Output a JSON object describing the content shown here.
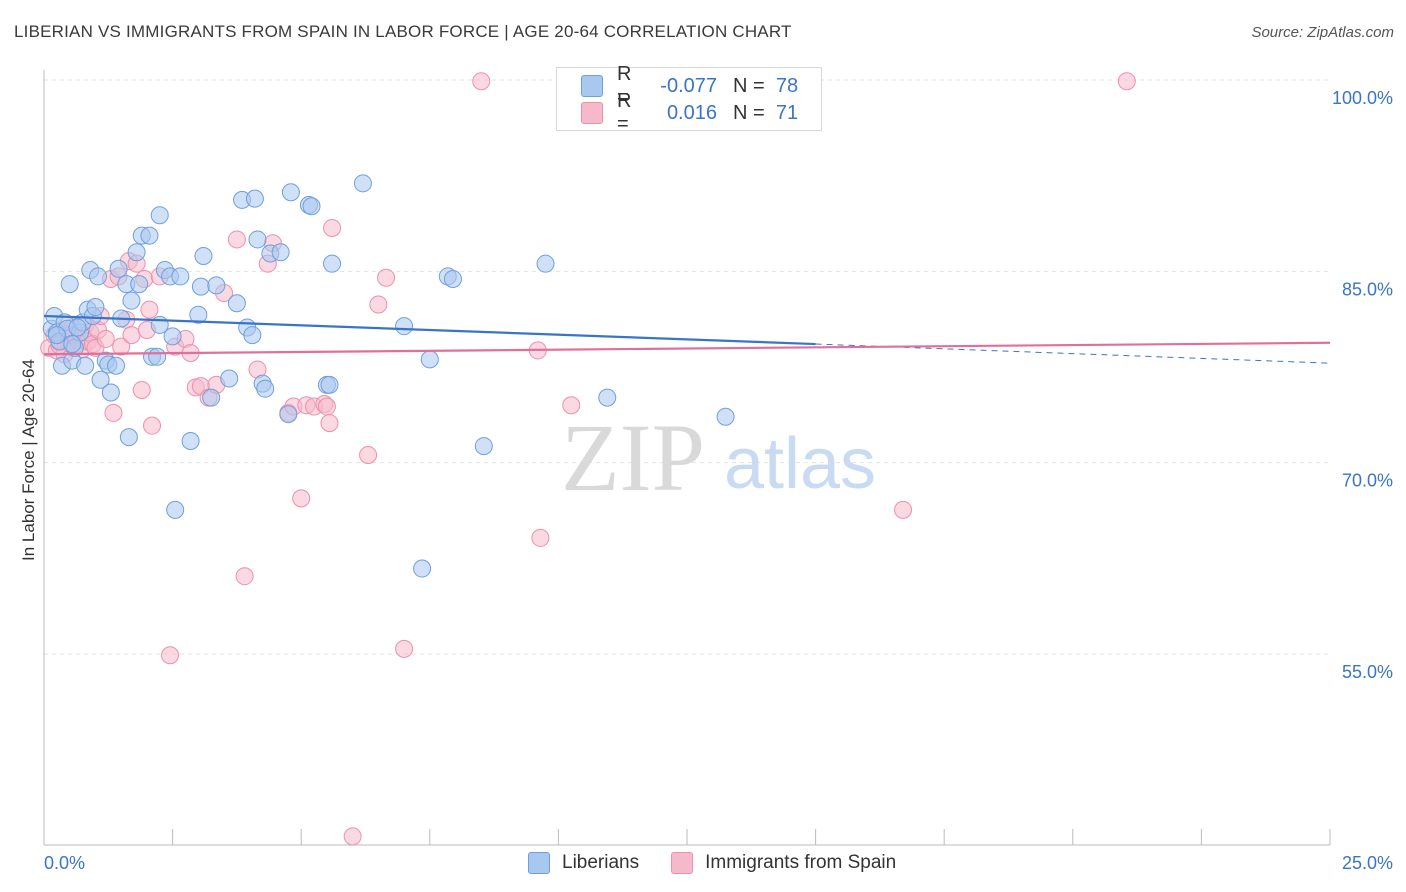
{
  "header": {
    "title": "LIBERIAN VS IMMIGRANTS FROM SPAIN IN LABOR FORCE | AGE 20-64 CORRELATION CHART",
    "source": "Source: ZipAtlas.com"
  },
  "watermark": {
    "zip": "ZIP",
    "atlas": "atlas"
  },
  "legend": {
    "rows": [
      {
        "r_label": "R =",
        "r_value": "-0.077",
        "n_label": "N =",
        "n_value": "78"
      },
      {
        "r_label": "R =",
        "r_value": "0.016",
        "n_label": "N =",
        "n_value": "71"
      }
    ]
  },
  "bottom_legend": {
    "series1": "Liberians",
    "series2": "Immigrants from Spain"
  },
  "colors": {
    "series1_fill": "#a9c8f0",
    "series1_stroke": "#6f9fdf",
    "series1_line": "#3a74c9",
    "series2_fill": "#f6b9cc",
    "series2_stroke": "#ee8fae",
    "series2_line": "#e0709a",
    "axis_text": "#3a74c9",
    "grid": "#e3e3e3"
  },
  "chart_data": {
    "type": "scatter",
    "title": "LIBERIAN VS IMMIGRANTS FROM SPAIN IN LABOR FORCE | AGE 20-64 CORRELATION CHART",
    "xlabel": "",
    "ylabel": "In Labor Force | Age 20-64",
    "xlim": [
      0,
      25
    ],
    "ylim": [
      40,
      101
    ],
    "x_tick_labels": [
      "0.0%",
      "25.0%"
    ],
    "y_ticks": [
      55,
      70,
      85,
      100
    ],
    "y_tick_labels": [
      "55.0%",
      "70.0%",
      "85.0%",
      "100.0%"
    ],
    "grid": true,
    "series": [
      {
        "name": "Liberians",
        "trend": {
          "x": [
            0,
            15
          ],
          "y": [
            81.5,
            79.3
          ],
          "dashed_to": [
            25,
            77.8
          ]
        },
        "points": [
          [
            0.15,
            80.5
          ],
          [
            0.2,
            81.5
          ],
          [
            0.25,
            80.2
          ],
          [
            0.3,
            79.5
          ],
          [
            0.35,
            77.6
          ],
          [
            0.4,
            81.0
          ],
          [
            0.45,
            80.5
          ],
          [
            0.5,
            84.0
          ],
          [
            0.55,
            78.0
          ],
          [
            0.6,
            79.0
          ],
          [
            0.7,
            80.2
          ],
          [
            0.75,
            81.0
          ],
          [
            0.8,
            77.6
          ],
          [
            0.85,
            82.0
          ],
          [
            0.9,
            85.1
          ],
          [
            0.95,
            81.5
          ],
          [
            1.0,
            82.2
          ],
          [
            1.05,
            84.6
          ],
          [
            1.1,
            76.5
          ],
          [
            1.2,
            78.0
          ],
          [
            1.25,
            77.7
          ],
          [
            1.3,
            75.5
          ],
          [
            1.4,
            77.6
          ],
          [
            1.45,
            85.2
          ],
          [
            1.5,
            81.3
          ],
          [
            1.6,
            84.0
          ],
          [
            1.65,
            72.0
          ],
          [
            1.7,
            82.7
          ],
          [
            1.8,
            86.5
          ],
          [
            1.85,
            84.0
          ],
          [
            1.9,
            87.8
          ],
          [
            2.05,
            87.8
          ],
          [
            2.1,
            78.3
          ],
          [
            2.2,
            78.3
          ],
          [
            2.25,
            89.4
          ],
          [
            2.25,
            80.8
          ],
          [
            2.35,
            85.1
          ],
          [
            2.45,
            84.6
          ],
          [
            2.5,
            79.9
          ],
          [
            2.55,
            66.3
          ],
          [
            2.65,
            84.6
          ],
          [
            2.85,
            71.7
          ],
          [
            3.0,
            81.6
          ],
          [
            3.05,
            83.8
          ],
          [
            3.1,
            86.2
          ],
          [
            3.25,
            75.1
          ],
          [
            3.35,
            83.9
          ],
          [
            3.6,
            76.6
          ],
          [
            3.75,
            82.5
          ],
          [
            3.85,
            90.6
          ],
          [
            3.95,
            80.6
          ],
          [
            4.05,
            80.0
          ],
          [
            4.1,
            90.7
          ],
          [
            4.15,
            87.5
          ],
          [
            4.25,
            76.2
          ],
          [
            4.3,
            75.8
          ],
          [
            4.4,
            86.4
          ],
          [
            4.6,
            86.5
          ],
          [
            4.75,
            73.8
          ],
          [
            4.8,
            91.2
          ],
          [
            5.15,
            90.2
          ],
          [
            5.2,
            90.1
          ],
          [
            5.5,
            76.1
          ],
          [
            5.55,
            76.1
          ],
          [
            5.6,
            85.6
          ],
          [
            6.2,
            91.9
          ],
          [
            7.0,
            80.7
          ],
          [
            7.35,
            61.7
          ],
          [
            7.5,
            78.1
          ],
          [
            7.85,
            84.6
          ],
          [
            7.95,
            84.4
          ],
          [
            8.55,
            71.3
          ],
          [
            9.75,
            85.6
          ],
          [
            10.95,
            75.1
          ],
          [
            13.25,
            73.6
          ],
          [
            0.25,
            80.0
          ],
          [
            0.55,
            79.3
          ],
          [
            0.65,
            80.6
          ]
        ]
      },
      {
        "name": "Immigrants from Spain",
        "trend": {
          "x": [
            0,
            25
          ],
          "y": [
            78.5,
            79.4
          ]
        },
        "points": [
          [
            0.1,
            79.0
          ],
          [
            0.2,
            80.0
          ],
          [
            0.25,
            78.8
          ],
          [
            0.3,
            79.6
          ],
          [
            0.35,
            80.3
          ],
          [
            0.4,
            78.5
          ],
          [
            0.45,
            80.1
          ],
          [
            0.5,
            79.3
          ],
          [
            0.55,
            80.6
          ],
          [
            0.6,
            79.2
          ],
          [
            0.65,
            79.6
          ],
          [
            0.7,
            79.8
          ],
          [
            0.75,
            78.9
          ],
          [
            0.8,
            80.8
          ],
          [
            0.85,
            79.5
          ],
          [
            0.9,
            80.2
          ],
          [
            0.95,
            79.3
          ],
          [
            1.0,
            79.0
          ],
          [
            1.05,
            80.4
          ],
          [
            1.1,
            81.5
          ],
          [
            1.2,
            79.7
          ],
          [
            1.3,
            84.4
          ],
          [
            1.35,
            73.9
          ],
          [
            1.45,
            84.6
          ],
          [
            1.5,
            79.1
          ],
          [
            1.6,
            81.2
          ],
          [
            1.65,
            85.8
          ],
          [
            1.7,
            80.0
          ],
          [
            1.8,
            85.6
          ],
          [
            1.9,
            75.7
          ],
          [
            1.95,
            84.4
          ],
          [
            2.0,
            80.4
          ],
          [
            2.05,
            82.0
          ],
          [
            2.1,
            72.9
          ],
          [
            2.25,
            84.6
          ],
          [
            2.45,
            54.9
          ],
          [
            2.55,
            79.1
          ],
          [
            2.75,
            79.7
          ],
          [
            2.85,
            78.6
          ],
          [
            2.95,
            75.9
          ],
          [
            3.05,
            76.0
          ],
          [
            3.2,
            75.1
          ],
          [
            3.35,
            76.1
          ],
          [
            3.5,
            83.3
          ],
          [
            3.75,
            87.5
          ],
          [
            3.9,
            61.1
          ],
          [
            4.15,
            77.3
          ],
          [
            4.35,
            85.6
          ],
          [
            4.45,
            87.2
          ],
          [
            4.75,
            73.9
          ],
          [
            4.85,
            74.4
          ],
          [
            5.0,
            67.2
          ],
          [
            5.1,
            74.5
          ],
          [
            5.25,
            74.4
          ],
          [
            5.45,
            74.6
          ],
          [
            5.5,
            74.4
          ],
          [
            5.55,
            73.1
          ],
          [
            5.6,
            88.4
          ],
          [
            6.0,
            40.7
          ],
          [
            6.3,
            70.6
          ],
          [
            6.5,
            82.4
          ],
          [
            6.65,
            84.5
          ],
          [
            7.0,
            55.4
          ],
          [
            8.5,
            99.9
          ],
          [
            9.6,
            78.8
          ],
          [
            9.65,
            64.1
          ],
          [
            10.25,
            74.5
          ],
          [
            16.7,
            66.3
          ],
          [
            21.05,
            99.9
          ],
          [
            0.3,
            79.2
          ],
          [
            0.5,
            80.0
          ]
        ]
      }
    ]
  }
}
